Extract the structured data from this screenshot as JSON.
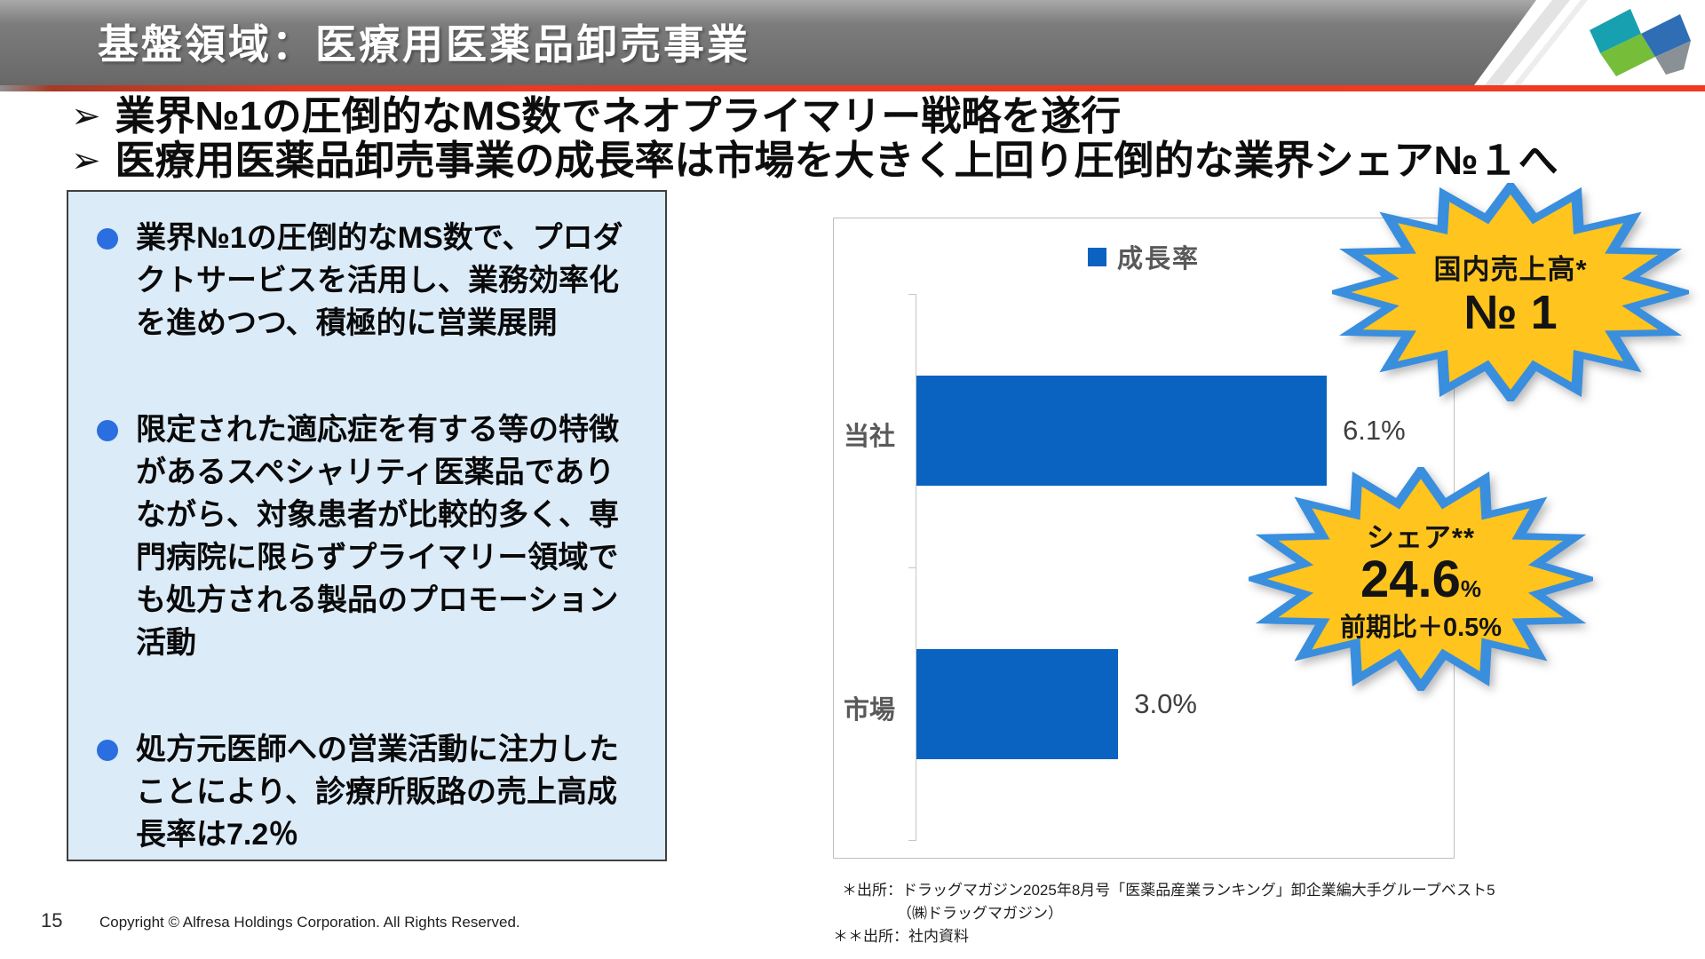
{
  "header": {
    "title": "基盤領域：医療用医薬品卸売事業"
  },
  "key_points": [
    {
      "marker": "➢",
      "text": "業界№1の圧倒的なMS数でネオプライマリー戦略を遂行"
    },
    {
      "marker": "➢",
      "text": "医療用医薬品卸売事業の成長率は市場を大きく上回り圧倒的な業界シェア№１へ"
    }
  ],
  "info_box": {
    "bullets": [
      "業界№1の圧倒的なMS数で、プロダクトサービスを活用し、業務効率化を進めつつ、積極的に営業展開",
      "限定された適応症を有する等の特徴があるスペシャリティ医薬品でありながら、対象患者が比較的多く、専門病院に限らずプライマリー領域でも処方される製品のプロモーション活動",
      "処方元医師への営業活動に注力したことにより、診療所販路の売上高成長率は7.2％"
    ]
  },
  "chart_data": {
    "type": "bar",
    "orientation": "horizontal",
    "legend": [
      "成長率"
    ],
    "legend_position": "top",
    "categories": [
      "当社",
      "市場"
    ],
    "values": [
      6.1,
      3.0
    ],
    "value_labels": [
      "6.1%",
      "3.0%"
    ],
    "xlim": [
      0,
      8
    ],
    "grid": false,
    "bar_color": "#0a63c1",
    "title": "",
    "xlabel": "",
    "ylabel": ""
  },
  "badges": {
    "sales": {
      "label": "国内売上高*",
      "value": "№ 1"
    },
    "share": {
      "label": "シェア**",
      "value": "24.6",
      "unit": "%",
      "sub": "前期比＋0.5%"
    }
  },
  "footnotes": {
    "line1": "＊出所：ドラッグマガジン2025年8月号「医薬品産業ランキング」卸企業編大手グループベスト5",
    "line2": "（㈱ドラッグマガジン）",
    "line3": "＊＊出所：社内資料"
  },
  "footer": {
    "page_number": "15",
    "copyright": "Copyright © Alfresa Holdings Corporation. All Rights Reserved."
  },
  "colors": {
    "bar_blue": "#0a63c1",
    "bullet_blue": "#2a6ee0",
    "box_bg": "#dcebf8",
    "badge_yellow": "#ffc41d",
    "badge_border_blue": "#3a8ede",
    "header_gray": "#7c7c7c",
    "stripe_red": "#e63a24"
  }
}
